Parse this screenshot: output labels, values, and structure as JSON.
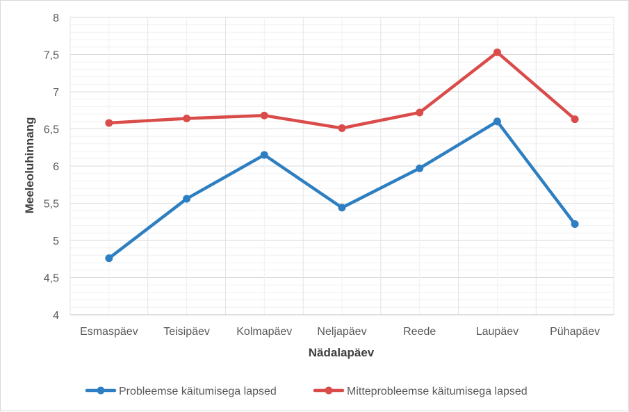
{
  "chart_data": {
    "type": "line",
    "title": "",
    "xlabel": "Nädalapäev",
    "ylabel": "Meeleoluhinnang",
    "categories": [
      "Esmaspäev",
      "Teisipäev",
      "Kolmapäev",
      "Neljapäev",
      "Reede",
      "Laupäev",
      "Pühapäev"
    ],
    "ylim": [
      4,
      8
    ],
    "yticks": [
      "4",
      "4,5",
      "5",
      "5,5",
      "6",
      "6,5",
      "7",
      "7,5",
      "8"
    ],
    "ytick_values": [
      4,
      4.5,
      5,
      5.5,
      6,
      6.5,
      7,
      7.5,
      8
    ],
    "grid": true,
    "legend_position": "bottom",
    "series": [
      {
        "name": "Probleemse käitumisega lapsed",
        "color": "#2e7fc1",
        "values": [
          4.76,
          5.56,
          6.15,
          5.44,
          5.97,
          6.6,
          5.22
        ]
      },
      {
        "name": "Mitteprobleemse käitumisega lapsed",
        "color": "#d94c4a",
        "values": [
          6.58,
          6.64,
          6.68,
          6.51,
          6.72,
          7.53,
          6.63
        ]
      }
    ]
  }
}
